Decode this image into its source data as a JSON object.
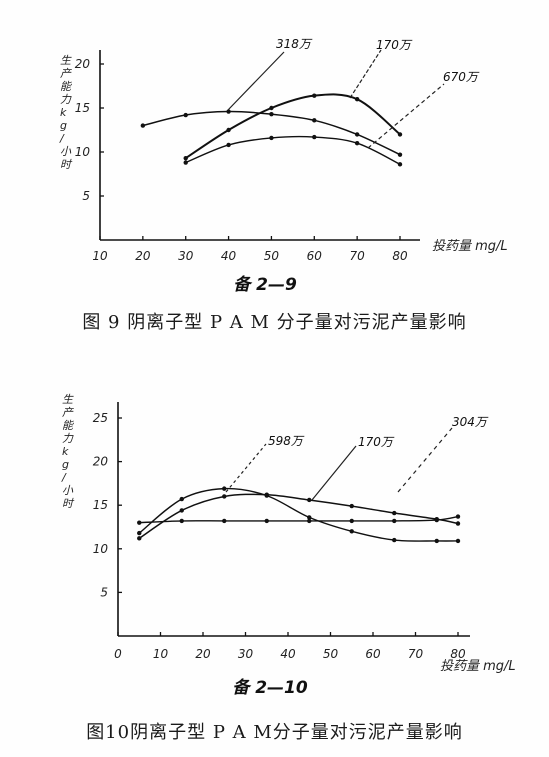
{
  "chart_data": [
    {
      "type": "line",
      "figure_label": "备 2—9",
      "caption": "图 9 阴离子型 P A M 分子量对污泥产量影响",
      "ylabel": "生产能力 kg/小时",
      "xlabel": "投药量 mg/L",
      "xlim": [
        10,
        80
      ],
      "ylim": [
        0,
        20
      ],
      "x_ticks": [
        10,
        20,
        30,
        40,
        50,
        60,
        70,
        80
      ],
      "y_ticks": [
        5,
        10,
        15,
        20
      ],
      "grid": false,
      "series": [
        {
          "name": "318万",
          "x": [
            10,
            20,
            30,
            40,
            50,
            60,
            70,
            80
          ],
          "y": [
            null,
            13.0,
            14.2,
            14.6,
            14.3,
            13.6,
            12.0,
            9.7
          ]
        },
        {
          "name": "170万",
          "x": [
            30,
            40,
            50,
            60,
            70,
            80
          ],
          "y": [
            9.3,
            12.5,
            15.0,
            16.4,
            16.0,
            12.0
          ]
        },
        {
          "name": "670万",
          "x": [
            30,
            40,
            50,
            60,
            70,
            80
          ],
          "y": [
            8.8,
            10.8,
            11.6,
            11.7,
            11.0,
            8.6
          ]
        }
      ]
    },
    {
      "type": "line",
      "figure_label": "备 2—10",
      "caption": "图10阴离子型 P A M分子量对污泥产量影响",
      "ylabel": "生产能力 kg/小时",
      "xlabel": "投药量 mg/L",
      "xlim": [
        0,
        80
      ],
      "ylim": [
        0,
        25
      ],
      "x_ticks": [
        0,
        10,
        20,
        30,
        40,
        50,
        60,
        70,
        80
      ],
      "y_ticks": [
        5,
        10,
        15,
        20,
        25
      ],
      "grid": false,
      "series": [
        {
          "name": "598万",
          "x": [
            5,
            15,
            25,
            35,
            45,
            55,
            65,
            75,
            80
          ],
          "y": [
            11.8,
            15.7,
            16.9,
            16.1,
            13.6,
            12.0,
            11.0,
            10.9,
            10.9
          ]
        },
        {
          "name": "170万",
          "x": [
            5,
            15,
            25,
            35,
            45,
            55,
            65,
            75,
            80
          ],
          "y": [
            11.2,
            14.4,
            16.0,
            16.2,
            15.6,
            14.9,
            14.1,
            13.4,
            12.9
          ]
        },
        {
          "name": "304万",
          "x": [
            5,
            15,
            25,
            35,
            45,
            55,
            65,
            75,
            80
          ],
          "y": [
            13.0,
            13.2,
            13.2,
            13.2,
            13.2,
            13.2,
            13.2,
            13.3,
            13.7
          ]
        }
      ]
    }
  ]
}
